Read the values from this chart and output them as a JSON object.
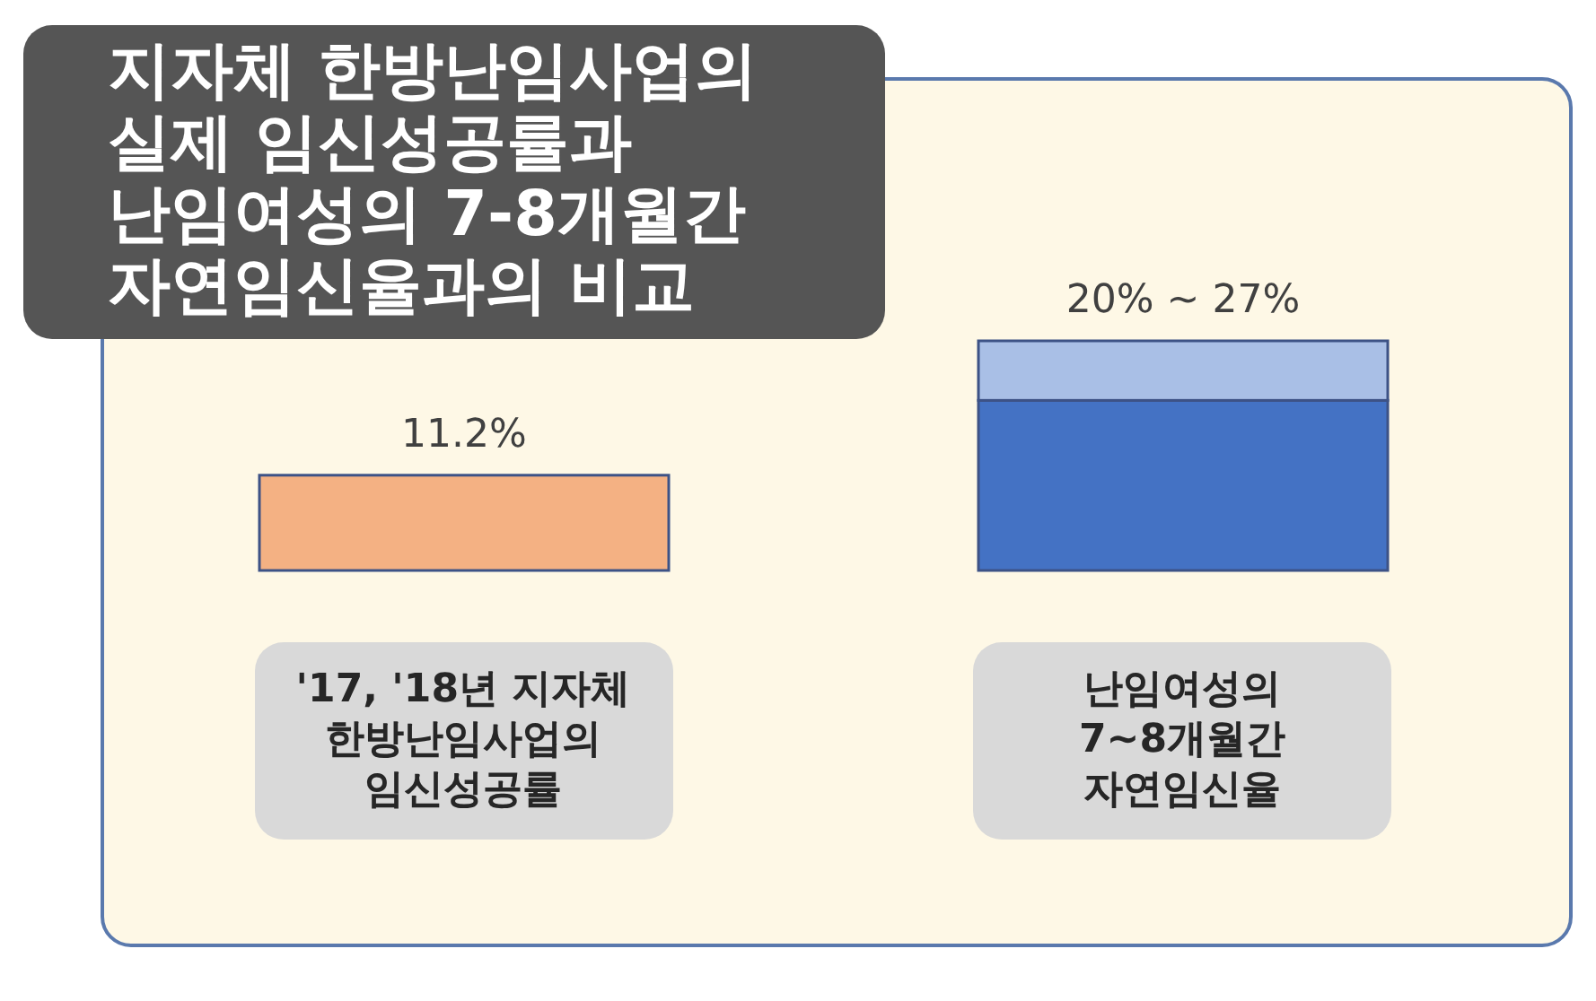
{
  "chart_data": {
    "type": "bar",
    "title": "지자체 한방난임사업의 실제 임신성공률과 난임여성의 7-8개월간 자연임신율과의 비교",
    "categories": [
      "'17, '18년 지자체 한방난임사업의 임신성공률",
      "난임여성의 7~8개월간 자연임신율"
    ],
    "stacked": true,
    "series": [
      {
        "colors": [
          "#f4b183",
          "#4472c4"
        ],
        "values": [
          11.2,
          20
        ],
        "value_labels": [
          "11.2%",
          null
        ]
      },
      {
        "color": "#a9bfe6",
        "values": [
          null,
          7
        ]
      }
    ],
    "annotations": [
      {
        "text": "20% ~ 27%",
        "x": "난임여성의 7~8개월간 자연임신율",
        "y": 27
      }
    ]
  }
}
